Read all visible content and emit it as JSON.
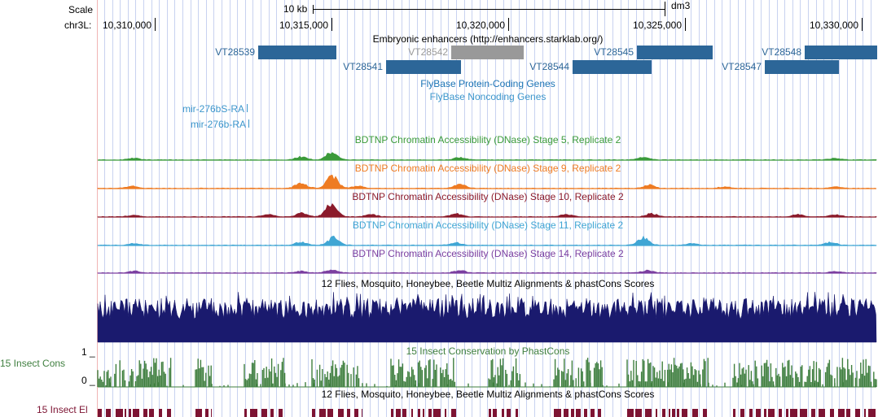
{
  "colors": {
    "enhancer": "#2c6698",
    "enhancer_gray": "#999999",
    "flybase": "#1b73b5",
    "noncoding": "#3c96cc",
    "stage5": "#3a9a3a",
    "stage9": "#ee7b22",
    "stage10": "#8b1a2b",
    "stage11": "#40a6d4",
    "stage14": "#7b3fa0",
    "multiz": "#1a1a6e",
    "cons": "#3f7f3f",
    "elements": "#7d1433"
  },
  "scale": {
    "label": "Scale",
    "bar_label": "10 kb",
    "assembly": "dm3"
  },
  "ruler": {
    "chrom_label": "chr3L:",
    "ticks": [
      "10,310,000",
      "10,315,000",
      "10,320,000",
      "10,325,000",
      "10,330,000"
    ]
  },
  "enhancers": {
    "title": "Embryonic enhancers (http://enhancers.starklab.org/)",
    "items": [
      {
        "id": "VT28539",
        "row": 1,
        "gray": false
      },
      {
        "id": "VT28542",
        "row": 1,
        "gray": true
      },
      {
        "id": "VT28545",
        "row": 1,
        "gray": false
      },
      {
        "id": "VT28548",
        "row": 1,
        "gray": false
      },
      {
        "id": "VT28541",
        "row": 2,
        "gray": false
      },
      {
        "id": "VT28544",
        "row": 2,
        "gray": false
      },
      {
        "id": "VT28547",
        "row": 2,
        "gray": false
      }
    ]
  },
  "flybase": {
    "coding_title": "FlyBase Protein-Coding Genes",
    "noncoding_title": "FlyBase Noncoding Genes"
  },
  "noncoding_genes": [
    "mir-276bS-RA",
    "mir-276b-RA"
  ],
  "dnase_tracks": [
    {
      "key": "stage5",
      "title": "BDTNP Chromatin Accessibility (DNase) Stage 5, Replicate 2"
    },
    {
      "key": "stage9",
      "title": "BDTNP Chromatin Accessibility (DNase) Stage 9, Replicate 2"
    },
    {
      "key": "stage10",
      "title": "BDTNP Chromatin Accessibility (DNase) Stage 10, Replicate 2"
    },
    {
      "key": "stage11",
      "title": "BDTNP Chromatin Accessibility (DNase) Stage 11, Replicate 2"
    },
    {
      "key": "stage14",
      "title": "BDTNP Chromatin Accessibility (DNase) Stage 14, Replicate 2"
    }
  ],
  "multiz": {
    "title": "12 Flies, Mosquito, Honeybee, Beetle Multiz Alignments & phastCons Scores"
  },
  "cons": {
    "side_label": "15 Insect Cons",
    "title": "15 Insect Conservation by PhastCons",
    "ymax": "1 _",
    "ymin": "0 _"
  },
  "elements": {
    "side_label": "15 Insect El",
    "title": "12 Flies, Mosquito, Honeybee, Beetle Multiz Alignments & phastCons Scores"
  }
}
